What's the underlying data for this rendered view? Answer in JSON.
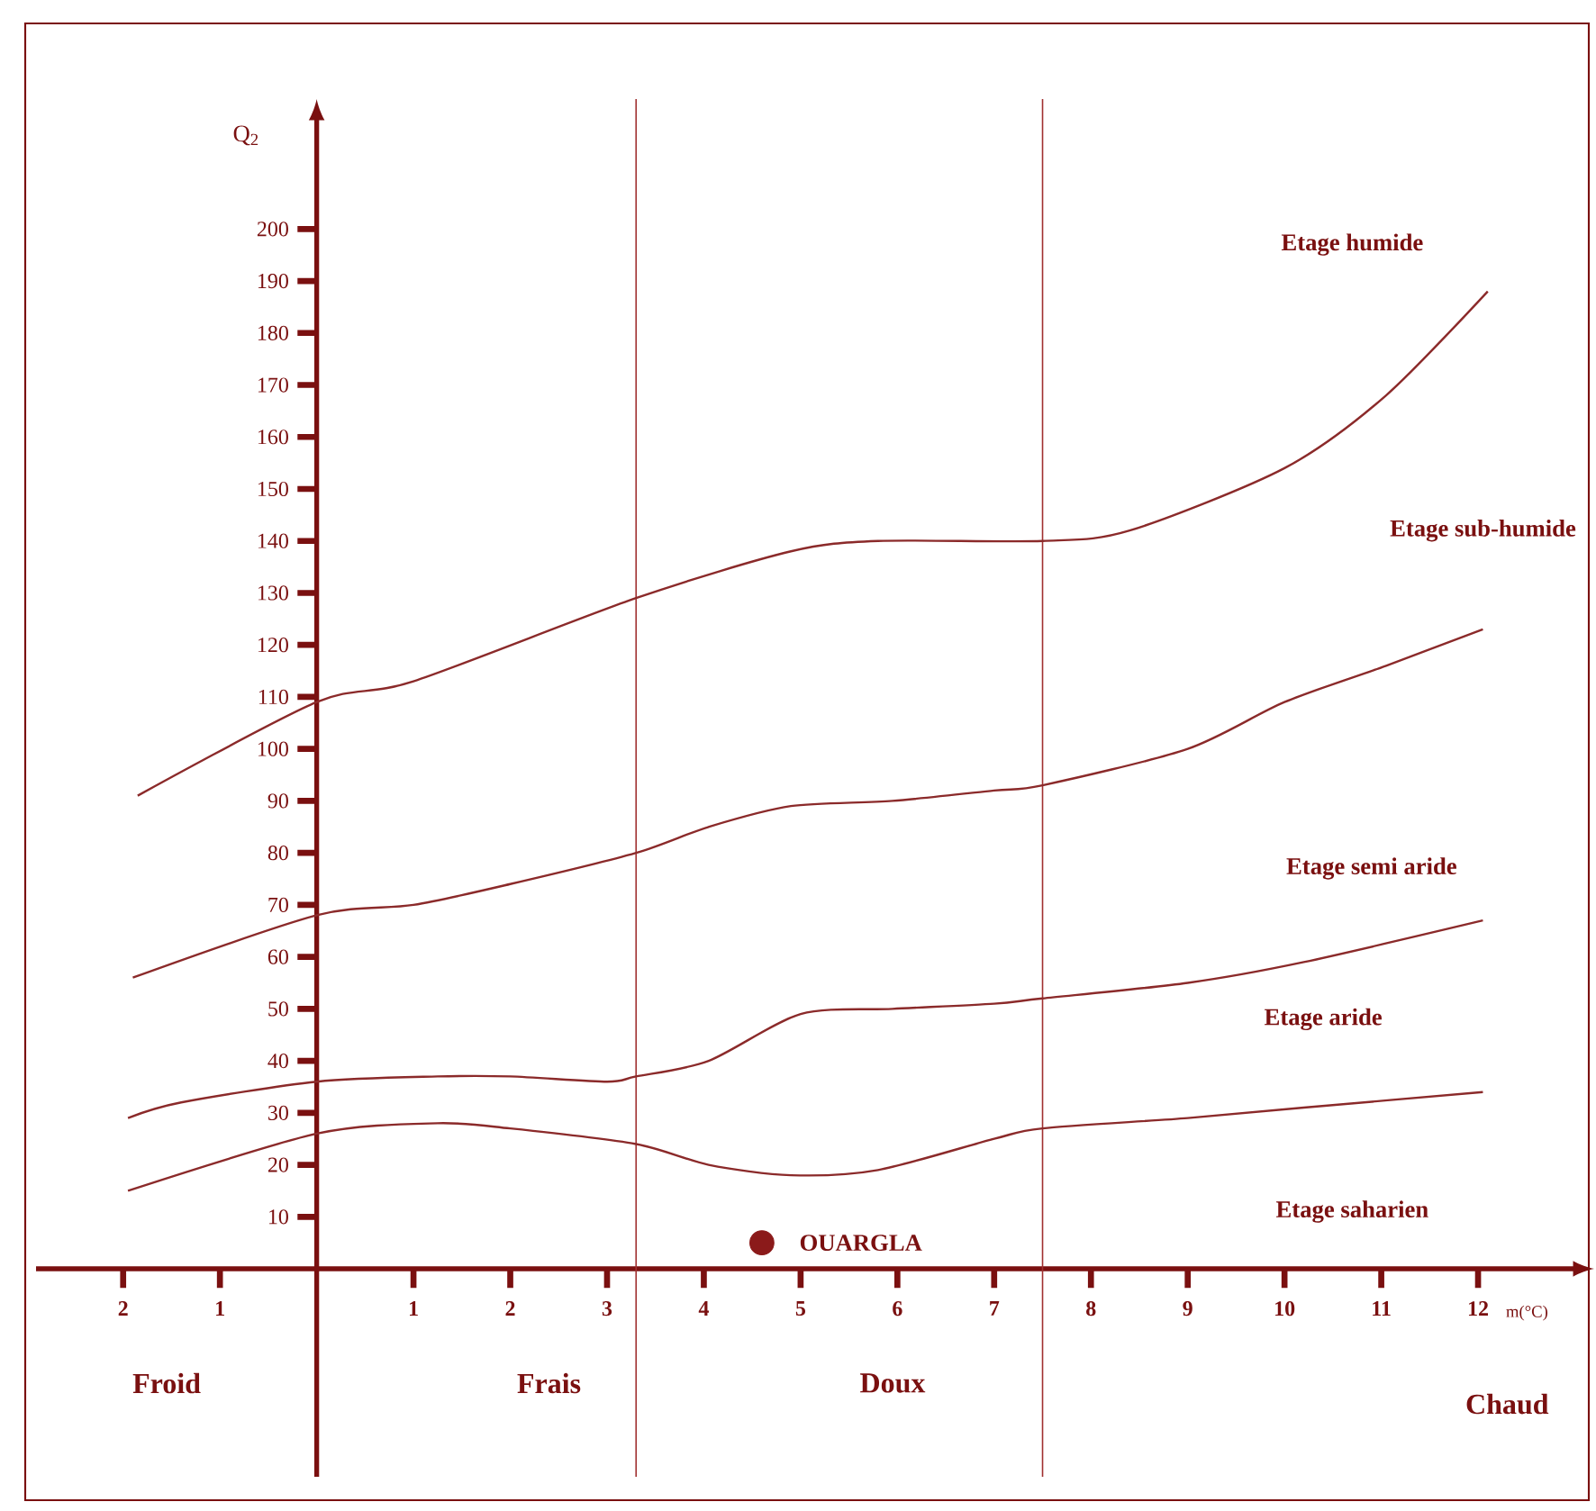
{
  "chart_data": {
    "type": "line",
    "ylabel": "Q$_{2}$",
    "xlabel": "m(°C)",
    "xlim": [
      -2.9,
      13.2
    ],
    "ylim": [
      -40,
      225
    ],
    "xticks": [
      {
        "value": -2,
        "label": "2"
      },
      {
        "value": -1,
        "label": "1"
      },
      1,
      2,
      3,
      4,
      5,
      6,
      7,
      8,
      9,
      10,
      11,
      12
    ],
    "yticks": [
      10,
      20,
      30,
      40,
      50,
      60,
      70,
      80,
      90,
      100,
      110,
      120,
      130,
      140,
      150,
      160,
      170,
      180,
      190,
      200
    ],
    "series": [
      {
        "color": "#8b2a2a",
        "x": [
          -1.85,
          0,
          1,
          3.3,
          4.9,
          5.8,
          7.5,
          8.4,
          10,
          11.05,
          12.1
        ],
        "values": [
          91,
          109,
          113,
          129,
          138,
          140,
          140,
          142,
          154,
          168,
          188
        ]
      },
      {
        "color": "#8b2a2a",
        "x": [
          -1.9,
          0,
          1,
          2,
          3.3,
          4.05,
          4.9,
          5.95,
          7,
          7.5,
          9,
          10,
          11.05,
          12.05
        ],
        "values": [
          56,
          68,
          70,
          74,
          80,
          85,
          89,
          90,
          92,
          93,
          100,
          109,
          116,
          123
        ]
      },
      {
        "color": "#8b2a2a",
        "x": [
          -1.95,
          -1.4,
          0,
          1.25,
          2,
          3,
          3.3,
          4.05,
          5,
          5.95,
          7,
          7.5,
          9,
          10.2,
          12.05
        ],
        "values": [
          29,
          32,
          36,
          37,
          37,
          36,
          37,
          40,
          49,
          50,
          51,
          52,
          55,
          59,
          67
        ]
      },
      {
        "color": "#8b2a2a",
        "x": [
          -1.95,
          0,
          1.25,
          2,
          3.3,
          4.05,
          4.9,
          5.8,
          7,
          7.5,
          9,
          10.2,
          12.05
        ],
        "values": [
          15,
          26,
          28,
          27,
          24,
          20,
          18,
          19,
          25,
          27,
          29,
          31,
          34
        ]
      },
      {
        "name": "OUARGLA",
        "type": "scatter",
        "color": "#8b1a1a",
        "x": [
          4.6
        ],
        "values": [
          5
        ]
      }
    ],
    "ref_lines": [
      {
        "axis": "x",
        "value": 3.3,
        "color": "#a03030"
      },
      {
        "axis": "x",
        "value": 7.5,
        "color": "#a03030"
      }
    ],
    "annotations": [
      "Etage humide",
      "Etage sub-humide",
      "Etage semi aride",
      "Etage aride",
      "Etage saharien",
      "Froid",
      "Frais",
      "Doux",
      "Chaud"
    ],
    "grid": false
  }
}
